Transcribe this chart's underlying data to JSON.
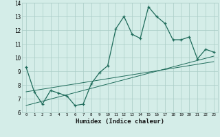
{
  "title": "",
  "xlabel": "Humidex (Indice chaleur)",
  "x_values": [
    0,
    1,
    2,
    3,
    4,
    5,
    6,
    7,
    8,
    9,
    10,
    11,
    12,
    13,
    14,
    15,
    16,
    17,
    18,
    19,
    20,
    21,
    22,
    23
  ],
  "y_main": [
    9.3,
    7.5,
    6.6,
    7.6,
    7.4,
    7.2,
    6.5,
    6.6,
    8.1,
    8.9,
    9.4,
    12.1,
    13.0,
    11.7,
    11.4,
    13.7,
    13.0,
    12.5,
    11.3,
    11.3,
    11.5,
    9.9,
    10.6,
    10.4
  ],
  "trend_line1": [
    7.5,
    9.7
  ],
  "trend_line2": [
    6.5,
    10.1
  ],
  "bg_color": "#d4ede8",
  "grid_color": "#aaccc6",
  "line_color": "#1e6b5a",
  "ylim": [
    6,
    14
  ],
  "xlim": [
    -0.5,
    23.5
  ]
}
